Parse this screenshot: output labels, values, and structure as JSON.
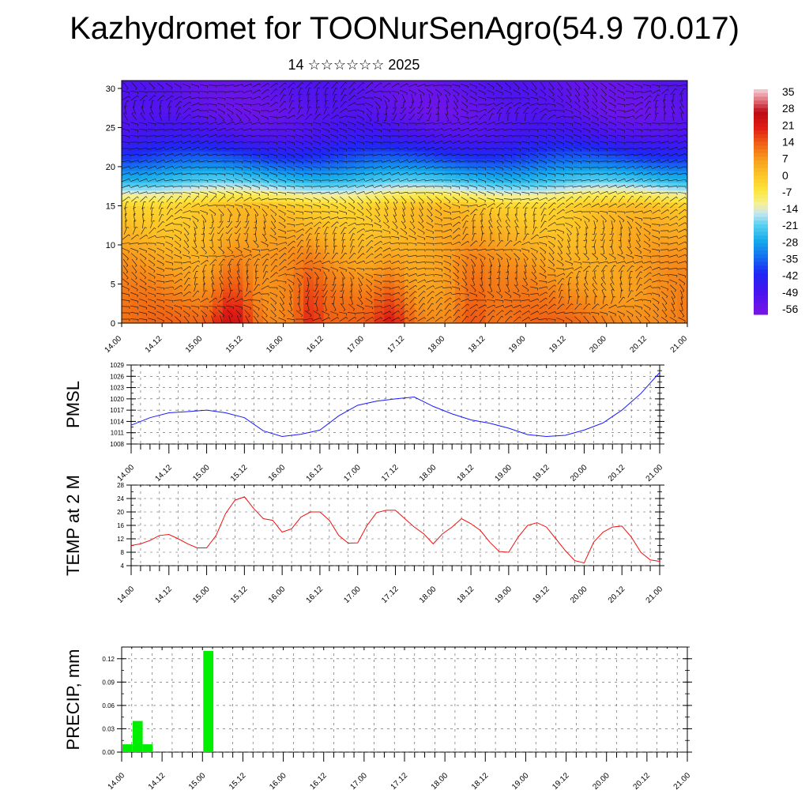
{
  "header": {
    "title": "Kazhydromet for TOONurSenAgro(54.9 70.017)",
    "subtitle": "14 ☆☆☆☆☆☆ 2025"
  },
  "colors": {
    "pmsl_line": "#1a1aff",
    "temp_line": "#ee1111",
    "precip_bar": "#00ee00"
  },
  "chart_data": [
    {
      "type": "heatmap",
      "name": "wind-temperature-cross-section",
      "title": "",
      "x_tick_labels": [
        "14.00",
        "14.12",
        "15.00",
        "15.12",
        "16.00",
        "16.12",
        "17.00",
        "17.12",
        "18.00",
        "18.12",
        "19.00",
        "19.12",
        "20.00",
        "20.12",
        "21.00"
      ],
      "y_tick_labels": [
        "0",
        "5",
        "10",
        "15",
        "20",
        "25",
        "30"
      ],
      "ylim": [
        0,
        31
      ],
      "colorbar": {
        "labels": [
          "35",
          "28",
          "21",
          "14",
          "7",
          "0",
          "-7",
          "-14",
          "-21",
          "-28",
          "-35",
          "-42",
          "-49",
          "-56"
        ],
        "range": [
          -60,
          38
        ]
      },
      "vertical_profile": {
        "levels": [
          0,
          3,
          6,
          9,
          12,
          15,
          18,
          21,
          24,
          27,
          31
        ],
        "temperature": [
          12,
          10,
          8,
          6,
          3,
          0,
          -22,
          -38,
          -50,
          -55,
          -54
        ]
      },
      "warm_anomaly_hours": [
        {
          "center": 33,
          "width": 6,
          "value": 15
        },
        {
          "center": 56,
          "width": 4,
          "value": 8
        },
        {
          "center": 80,
          "width": 5,
          "value": 9
        },
        {
          "center": 104,
          "width": 5,
          "value": 6
        }
      ]
    },
    {
      "type": "line",
      "name": "pmsl",
      "ylabel": "PMSL",
      "y_tick_labels": [
        "1029",
        "1026",
        "1023",
        "1020",
        "1017",
        "1014",
        "1011",
        "1008"
      ],
      "ylim": [
        1008,
        1029
      ],
      "x_tick_labels": [
        "14.00",
        "14.12",
        "15.00",
        "15.12",
        "16.00",
        "16.12",
        "17.00",
        "17.12",
        "18.00",
        "18.12",
        "19.00",
        "19.12",
        "20.00",
        "20.12",
        "21.00"
      ],
      "x_hours": [
        0,
        6,
        12,
        18,
        24,
        30,
        36,
        42,
        48,
        54,
        60,
        66,
        72,
        78,
        84,
        90,
        96,
        102,
        108,
        114,
        120,
        126,
        132,
        138,
        144,
        150,
        156,
        162,
        168
      ],
      "values": [
        1013,
        1015,
        1016.3,
        1016.6,
        1017,
        1016.3,
        1015,
        1011.5,
        1010,
        1010.6,
        1011.7,
        1015.5,
        1018.3,
        1019.4,
        1020,
        1020.5,
        1018,
        1016,
        1014.4,
        1013.5,
        1012.2,
        1010.5,
        1010,
        1010.3,
        1011.7,
        1013.6,
        1017,
        1021.4,
        1027
      ]
    },
    {
      "type": "line",
      "name": "temp-2m",
      "ylabel": "TEMP at 2 M",
      "y_tick_labels": [
        "28",
        "24",
        "20",
        "16",
        "12",
        "8",
        "4"
      ],
      "ylim": [
        4,
        28
      ],
      "x_tick_labels": [
        "14.00",
        "14.12",
        "15.00",
        "15.12",
        "16.00",
        "16.12",
        "17.00",
        "17.12",
        "18.00",
        "18.12",
        "19.00",
        "19.12",
        "20.00",
        "20.12",
        "21.00"
      ],
      "x_hours": [
        0,
        3,
        6,
        9,
        12,
        15,
        18,
        21,
        24,
        27,
        30,
        33,
        36,
        39,
        42,
        45,
        48,
        51,
        54,
        57,
        60,
        63,
        66,
        69,
        72,
        75,
        78,
        81,
        84,
        87,
        90,
        93,
        96,
        99,
        102,
        105,
        108,
        111,
        114,
        117,
        120,
        123,
        126,
        129,
        132,
        135,
        138,
        141,
        144,
        147,
        150,
        153,
        156,
        159,
        162,
        165,
        168
      ],
      "values": [
        10,
        10.5,
        11.5,
        13,
        13.3,
        12,
        10.5,
        9.3,
        9.3,
        13,
        19.5,
        23.5,
        24.5,
        21,
        18,
        17.5,
        14,
        15,
        18.5,
        20,
        20,
        17.5,
        13,
        10.7,
        10.8,
        16,
        19.8,
        20.5,
        20.5,
        18,
        15.5,
        13.5,
        10.5,
        13.5,
        15.5,
        18,
        16.5,
        14.5,
        11,
        8.2,
        8,
        12.5,
        16,
        16.8,
        15.5,
        12,
        8.5,
        5.5,
        4.8,
        11,
        14,
        15.5,
        15.8,
        12.5,
        8,
        5.7,
        5.3
      ]
    },
    {
      "type": "bar",
      "name": "precip",
      "ylabel": "PRECIP, mm",
      "y_tick_labels": [
        "0.12",
        "0.09",
        "0.06",
        "0.03",
        "0.00"
      ],
      "ylim": [
        0,
        0.135
      ],
      "x_tick_labels": [
        "14.00",
        "14.12",
        "15.00",
        "15.12",
        "16.00",
        "16.12",
        "17.00",
        "17.12",
        "18.00",
        "18.12",
        "19.00",
        "19.12",
        "20.00",
        "20.12",
        "21.00"
      ],
      "bars_hours": [
        0,
        3,
        6,
        9,
        24
      ],
      "values": [
        0.01,
        0.04,
        0.01,
        0,
        0.13
      ]
    }
  ]
}
